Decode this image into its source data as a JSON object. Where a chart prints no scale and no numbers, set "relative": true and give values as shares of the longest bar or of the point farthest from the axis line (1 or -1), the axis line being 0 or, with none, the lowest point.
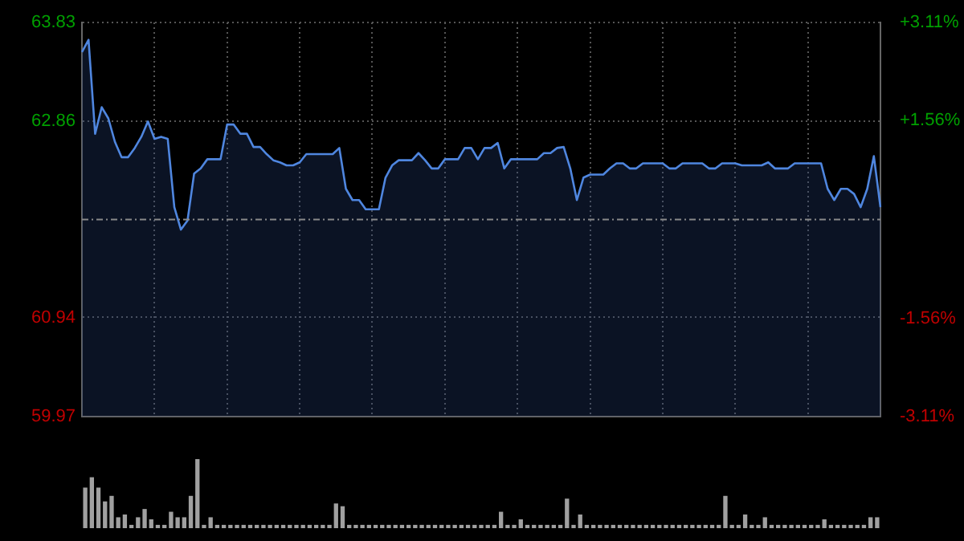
{
  "chart_data": [
    {
      "type": "area",
      "categories": [
        null,
        null,
        null,
        null,
        null,
        null,
        null,
        null,
        null,
        null,
        null,
        null,
        null,
        null,
        null,
        null,
        null,
        null,
        null,
        null,
        null,
        null,
        null,
        null,
        null,
        null,
        null,
        null,
        null,
        null,
        null,
        null,
        null,
        null,
        null,
        null,
        null,
        null,
        null,
        null,
        null,
        null,
        null,
        null,
        null,
        null,
        null,
        null,
        null,
        null,
        null,
        null,
        null,
        null,
        null,
        null,
        null,
        null,
        null,
        null,
        null,
        null,
        null,
        null,
        null,
        null,
        null,
        null,
        null,
        null,
        null,
        null,
        null,
        null,
        null,
        null,
        null,
        null,
        null,
        null,
        null,
        null,
        null,
        null,
        null,
        null,
        null,
        null,
        null,
        null,
        null,
        null,
        null,
        null,
        null,
        null,
        null,
        null,
        null,
        null,
        null,
        null,
        null,
        null,
        null,
        null,
        null,
        null,
        null,
        null,
        null,
        null,
        null,
        null,
        null,
        null,
        null,
        null,
        null,
        null,
        null,
        null
      ],
      "ylim": [
        59.97,
        63.83
      ],
      "yticks": [
        59.97,
        60.94,
        62.86,
        63.83
      ],
      "y2lim": [
        -3.11,
        3.11
      ],
      "y2ticks": [
        {
          "value": -3.11,
          "label": "-3.11%"
        },
        {
          "value": -1.56,
          "label": "-1.56%"
        },
        {
          "value": 1.56,
          "label": "+1.56%"
        },
        {
          "value": 3.11,
          "label": "+3.11%"
        }
      ],
      "ref_lines": [
        {
          "axis": "y",
          "value": 61.9,
          "line_style": "dashed",
          "color": "#8a8a8a"
        }
      ],
      "grid": true,
      "legend": false,
      "tick_labels": "y",
      "marker": "none",
      "series": [
        {
          "color": "#4f86df",
          "values": [
            63.54,
            63.66,
            62.74,
            63.0,
            62.89,
            62.66,
            62.51,
            62.51,
            62.6,
            62.71,
            62.86,
            62.69,
            62.71,
            62.69,
            62.02,
            61.8,
            61.89,
            62.35,
            62.4,
            62.49,
            62.49,
            62.49,
            62.83,
            62.83,
            62.74,
            62.74,
            62.61,
            62.61,
            62.54,
            62.48,
            62.46,
            62.43,
            62.43,
            62.46,
            62.54,
            62.54,
            62.54,
            62.54,
            62.54,
            62.6,
            62.2,
            62.09,
            62.09,
            62.0,
            62.0,
            62.0,
            62.31,
            62.43,
            62.48,
            62.48,
            62.48,
            62.55,
            62.48,
            62.4,
            62.4,
            62.49,
            62.49,
            62.49,
            62.6,
            62.6,
            62.49,
            62.6,
            62.6,
            62.65,
            62.4,
            62.49,
            62.49,
            62.49,
            62.49,
            62.49,
            62.55,
            62.55,
            62.6,
            62.61,
            62.4,
            62.09,
            62.31,
            62.34,
            62.34,
            62.34,
            62.4,
            62.45,
            62.45,
            62.4,
            62.4,
            62.45,
            62.45,
            62.45,
            62.45,
            62.4,
            62.4,
            62.45,
            62.45,
            62.45,
            62.45,
            62.4,
            62.4,
            62.45,
            62.45,
            62.45,
            62.43,
            62.43,
            62.43,
            62.43,
            62.46,
            62.4,
            62.4,
            62.4,
            62.45,
            62.45,
            62.45,
            62.45,
            62.45,
            62.2,
            62.09,
            62.2,
            62.2,
            62.15,
            62.02,
            62.2,
            62.52,
            62.02
          ]
        }
      ]
    },
    {
      "type": "bar",
      "relative": true,
      "legend": false,
      "tick_labels": false,
      "categories": [
        null,
        null,
        null,
        null,
        null,
        null,
        null,
        null,
        null,
        null,
        null,
        null,
        null,
        null,
        null,
        null,
        null,
        null,
        null,
        null,
        null,
        null,
        null,
        null,
        null,
        null,
        null,
        null,
        null,
        null,
        null,
        null,
        null,
        null,
        null,
        null,
        null,
        null,
        null,
        null,
        null,
        null,
        null,
        null,
        null,
        null,
        null,
        null,
        null,
        null,
        null,
        null,
        null,
        null,
        null,
        null,
        null,
        null,
        null,
        null,
        null,
        null,
        null,
        null,
        null,
        null,
        null,
        null,
        null,
        null,
        null,
        null,
        null,
        null,
        null,
        null,
        null,
        null,
        null,
        null,
        null,
        null,
        null,
        null,
        null,
        null,
        null,
        null,
        null,
        null,
        null,
        null,
        null,
        null,
        null,
        null,
        null,
        null,
        null,
        null,
        null,
        null,
        null,
        null,
        null,
        null,
        null,
        null,
        null,
        null,
        null,
        null,
        null,
        null,
        null,
        null,
        null,
        null,
        null,
        null,
        null
      ],
      "series": [
        {
          "color": "#a0a0a0",
          "values": [
            0.58,
            0.73,
            0.58,
            0.38,
            0.46,
            0.15,
            0.19,
            0.04,
            0.15,
            0.27,
            0.12,
            0.04,
            0.04,
            0.23,
            0.15,
            0.15,
            0.46,
            1,
            0.04,
            0.15,
            0.04,
            0.04,
            0.04,
            0.04,
            0.04,
            0.04,
            0.04,
            0.04,
            0.04,
            0.04,
            0.04,
            0.04,
            0.04,
            0.04,
            0.04,
            0.04,
            0.04,
            0.04,
            0.35,
            0.31,
            0.04,
            0.04,
            0.04,
            0.04,
            0.04,
            0.04,
            0.04,
            0.04,
            0.04,
            0.04,
            0.04,
            0.04,
            0.04,
            0.04,
            0.04,
            0.04,
            0.04,
            0.04,
            0.04,
            0.04,
            0.04,
            0.04,
            0.04,
            0.23,
            0.04,
            0.04,
            0.12,
            0.04,
            0.04,
            0.04,
            0.04,
            0.04,
            0.04,
            0.42,
            0.04,
            0.19,
            0.04,
            0.04,
            0.04,
            0.04,
            0.04,
            0.04,
            0.04,
            0.04,
            0.04,
            0.04,
            0.04,
            0.04,
            0.04,
            0.04,
            0.04,
            0.04,
            0.04,
            0.04,
            0.04,
            0.04,
            0.04,
            0.46,
            0.04,
            0.04,
            0.19,
            0.04,
            0.04,
            0.15,
            0.04,
            0.04,
            0.04,
            0.04,
            0.04,
            0.04,
            0.04,
            0.04,
            0.12,
            0.04,
            0.04,
            0.04,
            0.04,
            0.04,
            0.04,
            0.15,
            0.15
          ]
        }
      ]
    }
  ]
}
